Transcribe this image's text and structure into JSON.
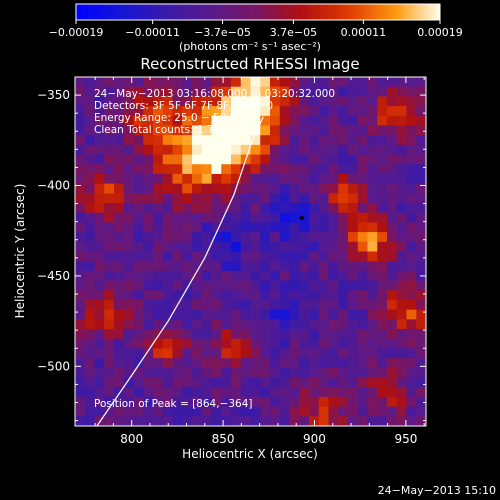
{
  "chart_data": {
    "type": "heatmap",
    "title": "Reconstructed RHESSI Image",
    "xlabel": "Heliocentric X (arcsec)",
    "ylabel": "Heliocentric Y (arcsec)",
    "xlim": [
      769,
      961
    ],
    "ylim": [
      -533,
      -340
    ],
    "xticks": [
      800,
      850,
      900,
      950
    ],
    "yticks": [
      -350,
      -400,
      -450,
      -500
    ],
    "ytick_labels": [
      "−350",
      "−400",
      "−450",
      "−500"
    ],
    "colorbar": {
      "min": -0.00019,
      "max": 0.00019,
      "tick_values": [
        -0.00019,
        -0.00011,
        -3.7e-05,
        3.7e-05,
        0.00011,
        0.00019
      ],
      "tick_labels": [
        "−0.00019",
        "−0.00011",
        "−3.7e−05",
        "3.7e−05",
        "0.00011",
        "0.00019"
      ],
      "unit_label": "(photons cm⁻² s⁻¹ asec⁻²)"
    },
    "annotations": {
      "time_range": "24−May−2013 03:16:08.000 to 03:20:32.000",
      "detectors": "Detectors: 3F 5F 6F 7F 8F 9F  At: 0",
      "energy": "Energy Range: 25.0 − 50.0 keV",
      "clean": "Clean    Total counts: 1.72e+03",
      "peak": "Position of Peak = [864,−364]"
    },
    "peak": [
      864,
      -364
    ],
    "limb_curve": [
      [
        781,
        -533
      ],
      [
        800,
        -505
      ],
      [
        820,
        -475
      ],
      [
        840,
        -440
      ],
      [
        856,
        -405
      ],
      [
        866,
        -375
      ],
      [
        872,
        -362
      ]
    ]
  },
  "footer": {
    "date": "24−May−2013 15:10"
  },
  "colors": {
    "background": "#000000",
    "text": "#ffffff"
  }
}
